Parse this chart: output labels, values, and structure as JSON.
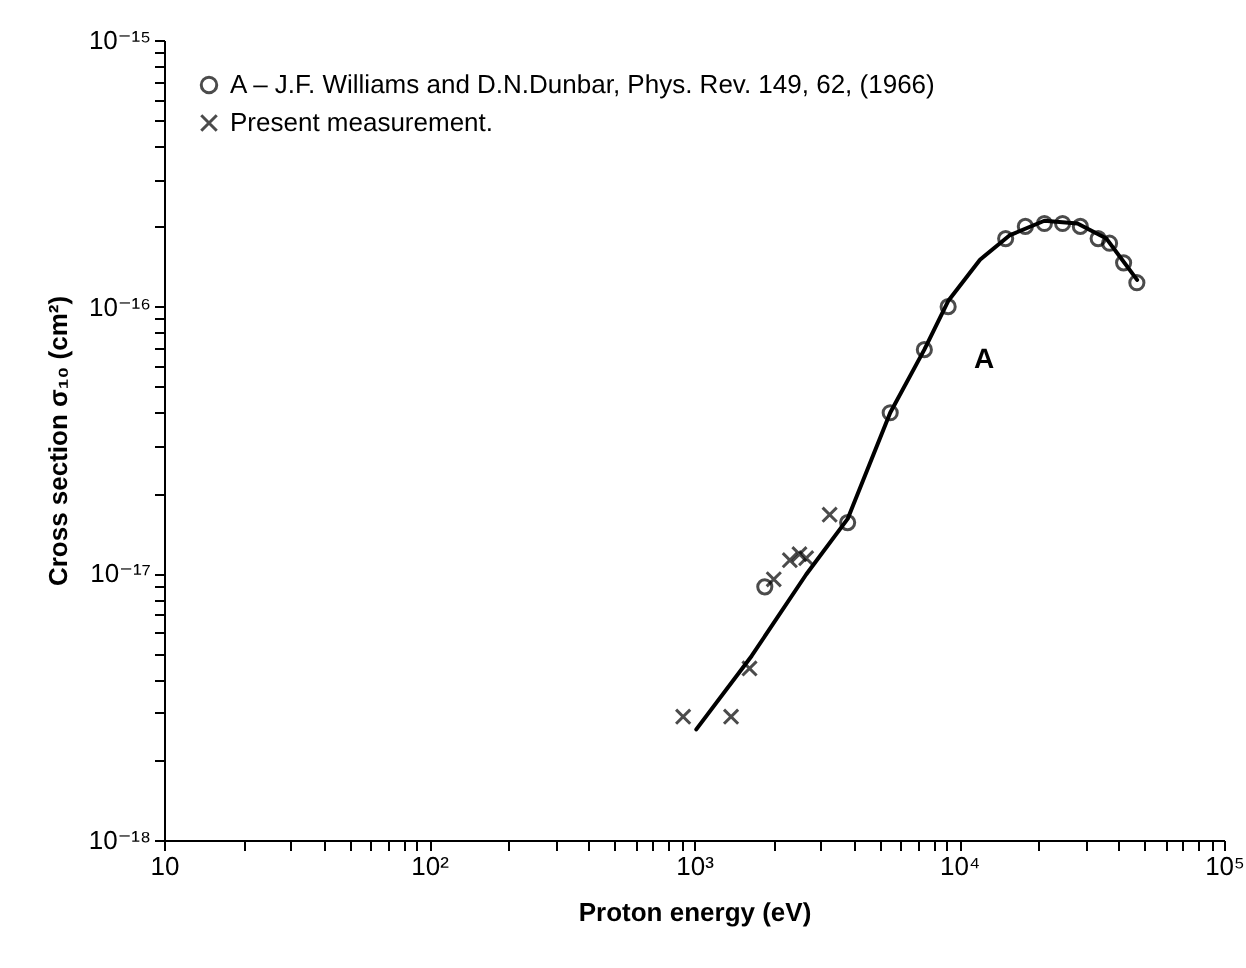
{
  "chart_data": {
    "type": "scatter",
    "xlabel": "Proton energy (eV)",
    "ylabel": "Cross section σ₁₀ (cm²)",
    "log": "xy",
    "legend": "top left",
    "grid": false,
    "xlim": [
      10,
      100000
    ],
    "ylim": [
      1e-18,
      1e-15
    ],
    "xticks": [
      {
        "value": 10,
        "label": "10"
      },
      {
        "value": 20,
        "label": null
      },
      {
        "value": 30,
        "label": null
      },
      {
        "value": 40,
        "label": null
      },
      {
        "value": 50,
        "label": null
      },
      {
        "value": 60,
        "label": null
      },
      {
        "value": 70,
        "label": null
      },
      {
        "value": 80,
        "label": null
      },
      {
        "value": 90,
        "label": null
      },
      {
        "value": 100,
        "label": "10²"
      },
      {
        "value": 200,
        "label": null
      },
      {
        "value": 300,
        "label": null
      },
      {
        "value": 400,
        "label": null
      },
      {
        "value": 500,
        "label": null
      },
      {
        "value": 600,
        "label": null
      },
      {
        "value": 700,
        "label": null
      },
      {
        "value": 800,
        "label": null
      },
      {
        "value": 900,
        "label": null
      },
      {
        "value": 1000,
        "label": "10³"
      },
      {
        "value": 2000,
        "label": null
      },
      {
        "value": 3000,
        "label": null
      },
      {
        "value": 4000,
        "label": null
      },
      {
        "value": 5000,
        "label": null
      },
      {
        "value": 6000,
        "label": null
      },
      {
        "value": 7000,
        "label": null
      },
      {
        "value": 8000,
        "label": null
      },
      {
        "value": 9000,
        "label": null
      },
      {
        "value": 10000,
        "label": "10⁴"
      },
      {
        "value": 20000,
        "label": null
      },
      {
        "value": 30000,
        "label": null
      },
      {
        "value": 40000,
        "label": null
      },
      {
        "value": 50000,
        "label": null
      },
      {
        "value": 60000,
        "label": null
      },
      {
        "value": 70000,
        "label": null
      },
      {
        "value": 80000,
        "label": null
      },
      {
        "value": 90000,
        "label": null
      },
      {
        "value": 100000,
        "label": "10⁵"
      }
    ],
    "yticks": [
      {
        "value": 1e-18,
        "label": "10⁻¹⁸"
      },
      {
        "value": 2e-18,
        "label": null
      },
      {
        "value": 3e-18,
        "label": null
      },
      {
        "value": 4e-18,
        "label": null
      },
      {
        "value": 5e-18,
        "label": null
      },
      {
        "value": 6e-18,
        "label": null
      },
      {
        "value": 7e-18,
        "label": null
      },
      {
        "value": 8e-18,
        "label": null
      },
      {
        "value": 9e-18,
        "label": null
      },
      {
        "value": 1e-17,
        "label": "10⁻¹⁷"
      },
      {
        "value": 2e-17,
        "label": null
      },
      {
        "value": 3e-17,
        "label": null
      },
      {
        "value": 4e-17,
        "label": null
      },
      {
        "value": 5e-17,
        "label": null
      },
      {
        "value": 6e-17,
        "label": null
      },
      {
        "value": 7e-17,
        "label": null
      },
      {
        "value": 8e-17,
        "label": null
      },
      {
        "value": 9e-17,
        "label": null
      },
      {
        "value": 1e-16,
        "label": "10⁻¹⁶"
      },
      {
        "value": 2e-16,
        "label": null
      },
      {
        "value": 3e-16,
        "label": null
      },
      {
        "value": 4e-16,
        "label": null
      },
      {
        "value": 5e-16,
        "label": null
      },
      {
        "value": 6e-16,
        "label": null
      },
      {
        "value": 7e-16,
        "label": null
      },
      {
        "value": 8e-16,
        "label": null
      },
      {
        "value": 9e-16,
        "label": null
      },
      {
        "value": 1e-15,
        "label": "10⁻¹⁵"
      }
    ],
    "series": [
      {
        "type": "line",
        "color": "#000000",
        "x": [
          1020,
          1650,
          2650,
          3800,
          5500,
          7400,
          9100,
          12000,
          15500,
          21000,
          28000,
          36000,
          47000
        ],
        "values": [
          2.6e-18,
          4.9e-18,
          9.9e-18,
          1.6e-17,
          4e-17,
          6.9e-17,
          1.05e-16,
          1.5e-16,
          1.85e-16,
          2.1e-16,
          2.05e-16,
          1.8e-16,
          1.26e-16
        ]
      },
      {
        "name": "A – J.F. Williams and D.N.Dunbar, Phys. Rev. 149, 62, (1966)",
        "marker": "circle",
        "color": "#000000",
        "x": [
          1850,
          3800,
          5500,
          7400,
          9100,
          15000,
          17800,
          21000,
          24600,
          28700,
          33500,
          37000,
          41800,
          46900
        ],
        "values": [
          8.9e-18,
          1.55e-17,
          4e-17,
          6.9e-17,
          1e-16,
          1.8e-16,
          2e-16,
          2.05e-16,
          2.05e-16,
          2e-16,
          1.8e-16,
          1.73e-16,
          1.46e-16,
          1.23e-16
        ]
      },
      {
        "name": "Present measurement.",
        "marker": "cross",
        "color": "#000000",
        "x": [
          910,
          1380,
          1620,
          2000,
          2300,
          2500,
          2650,
          3250
        ],
        "values": [
          2.9e-18,
          2.9e-18,
          4.4e-18,
          9.5e-18,
          1.12e-17,
          1.18e-17,
          1.14e-17,
          1.66e-17
        ]
      }
    ],
    "annotations": [
      "A"
    ]
  }
}
